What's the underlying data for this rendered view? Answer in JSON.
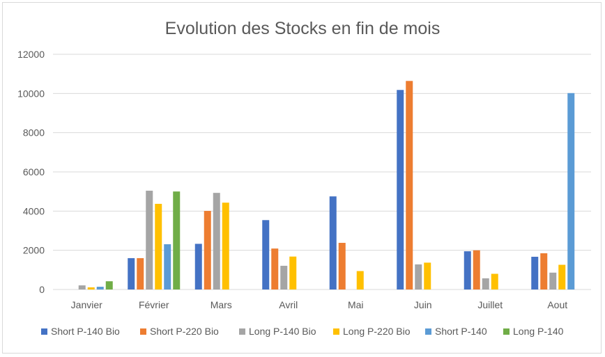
{
  "chart_data": {
    "type": "bar",
    "title": "Evolution des Stocks en fin de mois",
    "xlabel": "",
    "ylabel": "",
    "ylim": [
      0,
      12000
    ],
    "yticks": [
      0,
      2000,
      4000,
      6000,
      8000,
      10000,
      12000
    ],
    "grid": true,
    "legend_position": "bottom",
    "categories": [
      "Janvier",
      "Février",
      "Mars",
      "Avril",
      "Mai",
      "Juin",
      "Juillet",
      "Aout"
    ],
    "series": [
      {
        "name": "Short P-140 Bio",
        "color": "#4472C4",
        "values": [
          0,
          1600,
          2330,
          3540,
          4750,
          10180,
          1950,
          1670
        ]
      },
      {
        "name": "Short P-220 Bio",
        "color": "#ED7D31",
        "values": [
          0,
          1600,
          4010,
          2090,
          2380,
          10640,
          2000,
          1850
        ]
      },
      {
        "name": "Long P-140 Bio",
        "color": "#A5A5A5",
        "values": [
          210,
          5040,
          4930,
          1210,
          0,
          1280,
          570,
          860
        ]
      },
      {
        "name": "Long P-220 Bio",
        "color": "#FFC000",
        "values": [
          110,
          4370,
          4430,
          1680,
          940,
          1370,
          800,
          1260
        ]
      },
      {
        "name": "Short P-140",
        "color": "#5B9BD5",
        "values": [
          140,
          2310,
          0,
          0,
          0,
          0,
          0,
          10020
        ]
      },
      {
        "name": "Long P-140",
        "color": "#70AD47",
        "values": [
          420,
          5000,
          0,
          0,
          0,
          0,
          0,
          0
        ]
      }
    ]
  }
}
